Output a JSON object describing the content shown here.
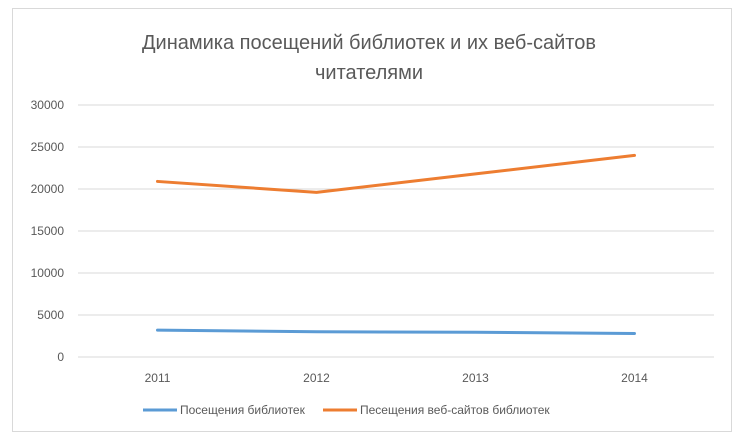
{
  "chart_data": {
    "type": "line",
    "title_lines": [
      "Динамика посещений библиотек и их веб-сайтов",
      "читателями"
    ],
    "categories": [
      "2011",
      "2012",
      "2013",
      "2014"
    ],
    "series": [
      {
        "name": "Посещения библиотек",
        "color": "#5b9bd5",
        "values": [
          3200,
          3000,
          2950,
          2800
        ]
      },
      {
        "name": "Песещения веб-сайтов библиотек",
        "color": "#ed7d31",
        "values": [
          20900,
          19600,
          21800,
          24000
        ]
      }
    ],
    "ylim": [
      0,
      30000
    ],
    "yticks": [
      0,
      5000,
      10000,
      15000,
      20000,
      25000,
      30000
    ],
    "xlabel": "",
    "ylabel": "",
    "grid": true,
    "legend": "bottom"
  }
}
